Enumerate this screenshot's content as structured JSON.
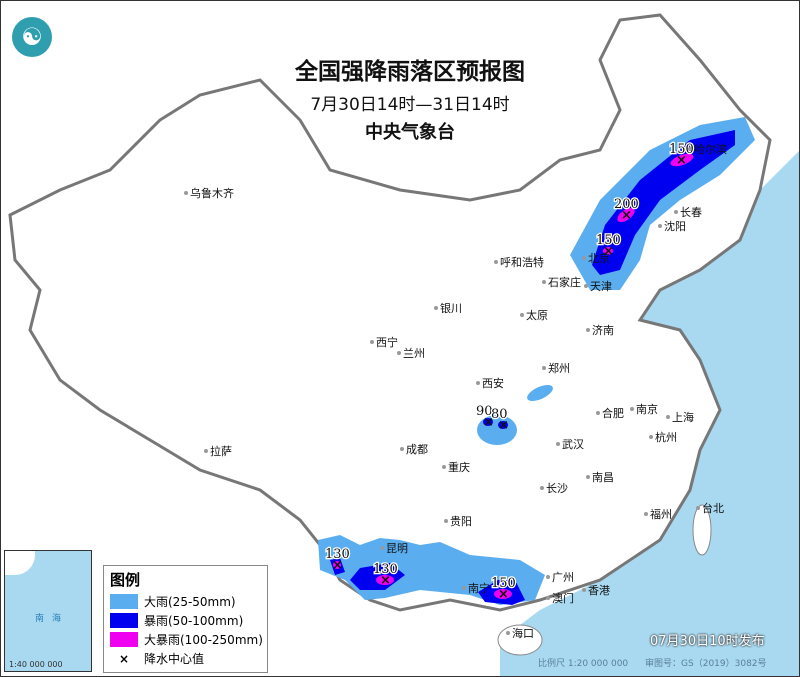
{
  "title": "全国强降雨落区预报图",
  "period": "7月30日14时—31日14时",
  "agency": "中央气象台",
  "issued": "07月30日10时发布",
  "scale": "比例尺 1:20 000 000",
  "map_number": "审图号：GS（2019）3082号",
  "inset": {
    "scale": "1:40 000 000",
    "sea_label": "南海"
  },
  "legend": {
    "title": "图例",
    "items": [
      {
        "label": "大雨(25-50mm)",
        "color": "#5aaef0"
      },
      {
        "label": "暴雨(50-100mm)",
        "color": "#0000f0"
      },
      {
        "label": "大暴雨(100-250mm)",
        "color": "#f000f0"
      },
      {
        "label": "降水中心值",
        "symbol": "×"
      }
    ]
  },
  "colors": {
    "sea": "#a9d9f0",
    "land": "#ffffff",
    "border": "#808080"
  },
  "cities": [
    "乌鲁木齐",
    "呼和浩特",
    "银川",
    "石家庄",
    "太原",
    "天津",
    "北京",
    "沈阳",
    "长春",
    "哈尔滨",
    "济南",
    "西宁",
    "兰州",
    "郑州",
    "西安",
    "合肥",
    "南京",
    "上海",
    "杭州",
    "武汉",
    "成都",
    "重庆",
    "拉萨",
    "长沙",
    "南昌",
    "福州",
    "台北",
    "贵阳",
    "昆明",
    "南宁",
    "广州",
    "香港",
    "澳门",
    "海口"
  ],
  "rain_centers": [
    "150",
    "200",
    "150",
    "130",
    "130",
    "150",
    "90",
    "80"
  ]
}
